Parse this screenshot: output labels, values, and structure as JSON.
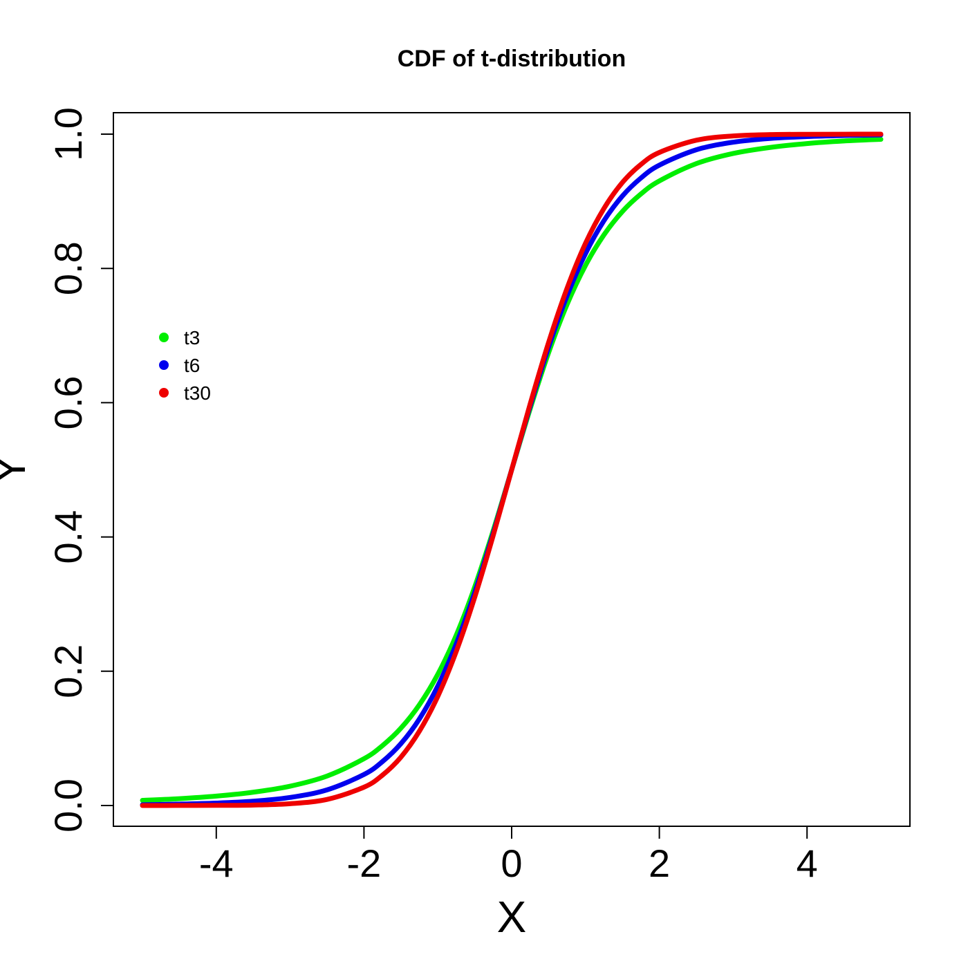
{
  "chart_data": {
    "type": "line",
    "title": "CDF of t-distribution",
    "xlabel": "X",
    "ylabel": "Y",
    "xlim": [
      -5,
      5
    ],
    "ylim": [
      0,
      1
    ],
    "xticks": [
      -4,
      -2,
      0,
      2,
      4
    ],
    "xtick_labels": [
      "-4",
      "-2",
      "0",
      "2",
      "4"
    ],
    "yticks": [
      0,
      0.2,
      0.4,
      0.6,
      0.8,
      1.0
    ],
    "ytick_labels": [
      "0.0",
      "0.2",
      "0.4",
      "0.6",
      "0.8",
      "1.0"
    ],
    "grid": false,
    "legend_position": "left",
    "x": [
      -5,
      -4.5,
      -4,
      -3.5,
      -3,
      -2.5,
      -2,
      -1.75,
      -1.5,
      -1.25,
      -1,
      -0.75,
      -0.5,
      -0.25,
      0,
      0.25,
      0.5,
      0.75,
      1,
      1.25,
      1.5,
      1.75,
      2,
      2.5,
      3,
      3.5,
      4,
      4.5,
      5
    ],
    "series": [
      {
        "name": "t3",
        "color": "#00ee00",
        "values": [
          0.0077,
          0.0102,
          0.014,
          0.0198,
          0.0288,
          0.0439,
          0.0697,
          0.0892,
          0.1152,
          0.15,
          0.1955,
          0.2538,
          0.3257,
          0.4094,
          0.5,
          0.5906,
          0.6743,
          0.7462,
          0.8045,
          0.85,
          0.8848,
          0.9108,
          0.9303,
          0.9561,
          0.9712,
          0.9802,
          0.986,
          0.9898,
          0.9923
        ]
      },
      {
        "name": "t6",
        "color": "#0000ee",
        "values": [
          0.0012,
          0.0021,
          0.0036,
          0.0064,
          0.012,
          0.0233,
          0.0462,
          0.0654,
          0.0921,
          0.1289,
          0.178,
          0.2408,
          0.3175,
          0.4054,
          0.5,
          0.5946,
          0.6825,
          0.7592,
          0.822,
          0.8711,
          0.9079,
          0.9346,
          0.9538,
          0.9767,
          0.988,
          0.9936,
          0.9964,
          0.9979,
          0.9988
        ]
      },
      {
        "name": "t30",
        "color": "#ee0000",
        "values": [
          0.0,
          0.0001,
          0.0002,
          0.0007,
          0.0027,
          0.0091,
          0.0273,
          0.0452,
          0.072,
          0.1106,
          0.1626,
          0.2296,
          0.3103,
          0.4021,
          0.5,
          0.5979,
          0.6897,
          0.7704,
          0.8374,
          0.8894,
          0.928,
          0.9548,
          0.9727,
          0.9909,
          0.9973,
          0.9993,
          0.9998,
          0.9999,
          1.0
        ]
      }
    ]
  }
}
